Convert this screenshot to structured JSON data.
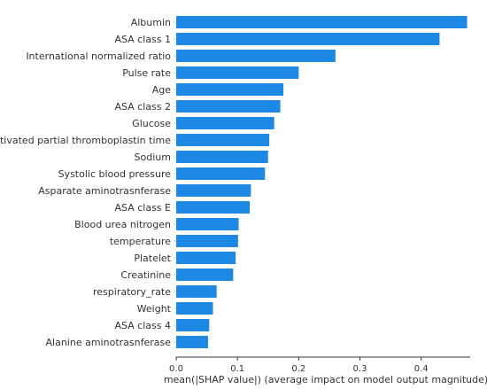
{
  "chart_data": {
    "type": "bar",
    "orientation": "horizontal",
    "categories": [
      "Albumin",
      "ASA class 1",
      "International normalized ratio",
      "Pulse rate",
      "Age",
      "ASA class 2",
      "Glucose",
      "Activated partial thromboplastin time",
      "Sodium",
      "Systolic blood pressure",
      "Asparate aminotrasnferase",
      "ASA class E",
      "Blood urea nitrogen",
      "temperature",
      "Platelet",
      "Creatinine",
      "respiratory_rate",
      "Weight",
      "ASA class 4",
      "Alanine aminotrasnferase"
    ],
    "values": [
      0.475,
      0.43,
      0.26,
      0.2,
      0.175,
      0.17,
      0.16,
      0.152,
      0.15,
      0.145,
      0.122,
      0.12,
      0.102,
      0.101,
      0.097,
      0.093,
      0.066,
      0.06,
      0.054,
      0.052
    ],
    "xlabel": "mean(|SHAP value|) (average impact on model output magnitude)",
    "ylabel": "",
    "xlim": [
      0,
      0.48
    ],
    "xticks": [
      0.0,
      0.1,
      0.2,
      0.3,
      0.4
    ],
    "xtick_labels": [
      "0.0",
      "0.1",
      "0.2",
      "0.3",
      "0.4"
    ],
    "grid": false,
    "bar_color": "#1e88e5",
    "axis_color": "#333333"
  }
}
